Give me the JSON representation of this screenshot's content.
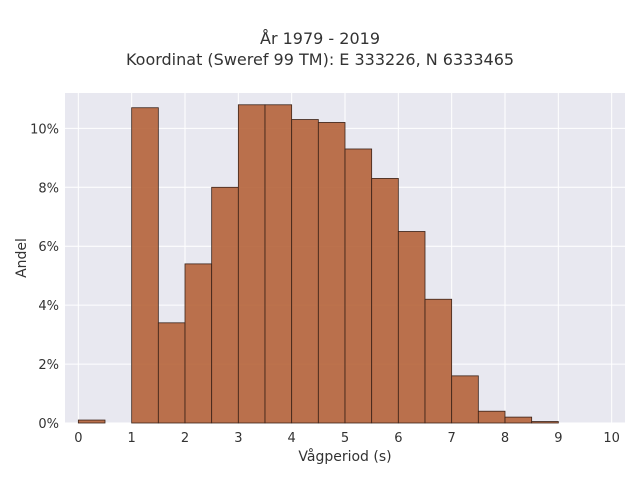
{
  "chart_data": {
    "type": "bar",
    "title_lines": [
      "År 1979 - 2019",
      "Koordinat (Sweref 99 TM): E 333226, N 6333465"
    ],
    "xlabel": "Vågperiod (s)",
    "ylabel": "Andel",
    "bin_width": 0.5,
    "bins_start": [
      0,
      0.5,
      1,
      1.5,
      2,
      2.5,
      3,
      3.5,
      4,
      4.5,
      5,
      5.5,
      6,
      6.5,
      7,
      7.5,
      8,
      8.5,
      9,
      9.5
    ],
    "values": [
      0.1,
      0,
      10.7,
      3.4,
      5.4,
      8.0,
      10.8,
      10.8,
      10.3,
      10.2,
      9.3,
      8.3,
      6.5,
      4.2,
      1.6,
      0.4,
      0.2,
      0.05,
      0,
      0
    ],
    "xlim": [
      -0.25,
      10.25
    ],
    "ylim": [
      0,
      11.2
    ],
    "x_ticks": [
      "0",
      "1",
      "2",
      "3",
      "4",
      "5",
      "6",
      "7",
      "8",
      "9",
      "10"
    ],
    "y_ticks": [
      "0%",
      "2%",
      "4%",
      "6%",
      "8%",
      "10%"
    ],
    "grid": true,
    "bar_color": "#b5633a",
    "background": "#e8e8f0"
  }
}
